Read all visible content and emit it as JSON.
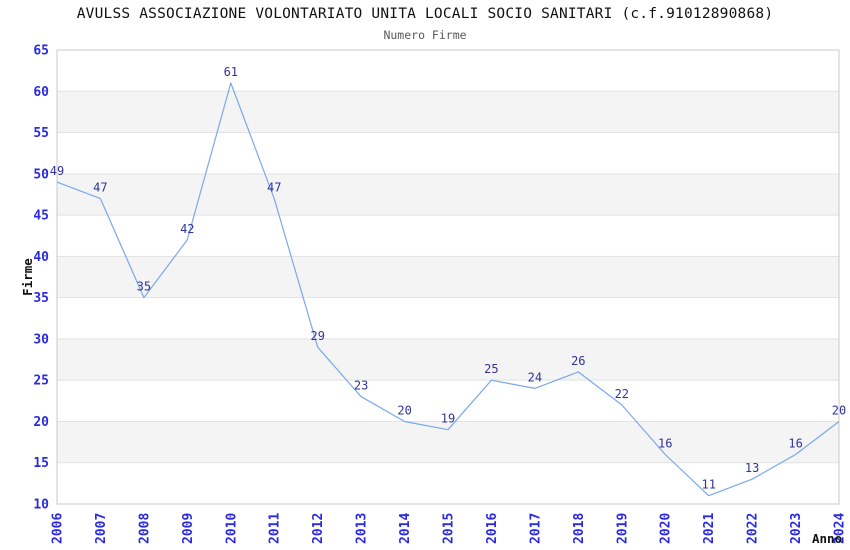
{
  "chart_data": {
    "type": "line",
    "title": "AVULSS ASSOCIAZIONE VOLONTARIATO UNITA LOCALI SOCIO SANITARI (c.f.91012890868)",
    "subtitle": "Numero Firme",
    "xlabel": "Anno",
    "ylabel": "Firme",
    "categories": [
      "2006",
      "2007",
      "2008",
      "2009",
      "2010",
      "2011",
      "2012",
      "2013",
      "2014",
      "2015",
      "2016",
      "2017",
      "2018",
      "2019",
      "2020",
      "2021",
      "2022",
      "2023",
      "2024"
    ],
    "series": [
      {
        "name": "Numero Firme",
        "values": [
          49,
          47,
          35,
          42,
          61,
          47,
          29,
          23,
          20,
          19,
          25,
          24,
          26,
          22,
          16,
          11,
          13,
          16,
          20
        ]
      }
    ],
    "ylim": [
      10,
      65
    ],
    "ytick_step": 5,
    "grid": "horizontal-gridlines-with-alternating-bands",
    "legend_position": "none",
    "point_labels": true,
    "x_tick_rotation_degrees": 90,
    "colors": {
      "line": "#79a8ec",
      "point_label": "#32329b",
      "tick_label": "#2a2ae0",
      "axis_title": "#111111",
      "title": "#111111",
      "subtitle": "#5a5a5a",
      "band": "#f4f4f4",
      "gridline": "#e2e2e2",
      "border": "#c9c9c9",
      "background": "#ffffff"
    }
  }
}
